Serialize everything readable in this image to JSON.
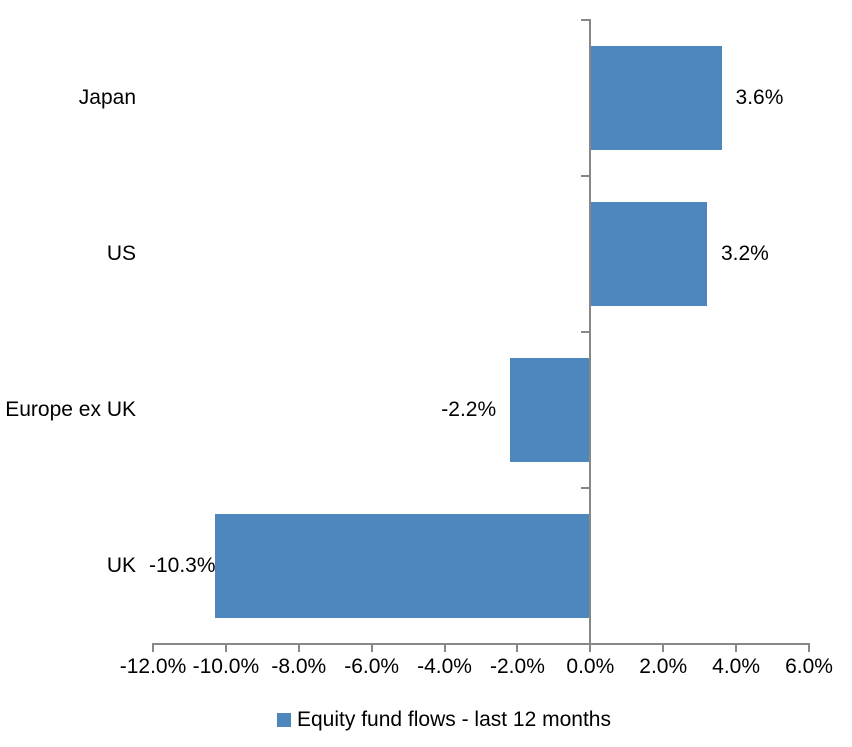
{
  "chart_data": {
    "type": "bar",
    "orientation": "horizontal",
    "title": "",
    "categories": [
      "Japan",
      "US",
      "Europe ex UK",
      "UK"
    ],
    "series": [
      {
        "name": "Equity fund flows - last 12 months",
        "values": [
          3.6,
          3.2,
          -2.2,
          -10.3
        ]
      }
    ],
    "data_labels": [
      "3.6%",
      "3.2%",
      "-2.2%",
      "-10.3%"
    ],
    "x_tick_values": [
      -12,
      -10,
      -8,
      -6,
      -4,
      -2,
      0,
      2,
      4,
      6
    ],
    "x_tick_labels": [
      "-12.0%",
      "-10.0%",
      "-8.0%",
      "-6.0%",
      "-4.0%",
      "-2.0%",
      "0.0%",
      "2.0%",
      "4.0%",
      "6.0%"
    ],
    "xlim": [
      -12,
      6
    ],
    "grid": false,
    "legend_position": "bottom",
    "legend_label": "Equity fund flows - last 12 months",
    "colors": {
      "bar": "#4E86BE",
      "axis": "#878787",
      "text": "#000000",
      "background": "#FFFFFF"
    }
  }
}
